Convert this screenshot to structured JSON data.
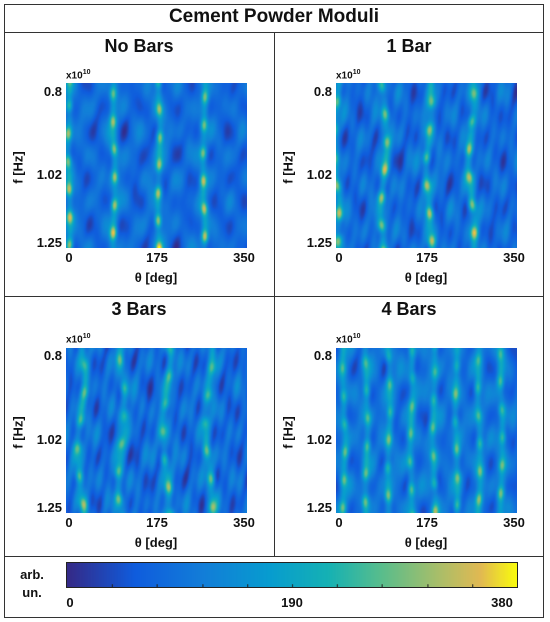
{
  "chart_data": {
    "type": "heatmap",
    "title": "Cement Powder Moduli",
    "xlabel": "θ [deg]",
    "ylabel": "f [Hz]",
    "y_exponent_base": "x10",
    "y_exponent_power": "10",
    "xlim": [
      0,
      360
    ],
    "ylim": [
      0.8,
      1.25
    ],
    "xticks": [
      "0",
      "175",
      "350"
    ],
    "yticks": [
      "0.8",
      "1.02",
      "1.25"
    ],
    "colorbar": {
      "label": "arb. un.",
      "range": [
        0,
        380
      ],
      "ticks": [
        "0",
        "190",
        "380"
      ],
      "colormap": "parula"
    },
    "panels": [
      {
        "title": "No Bars",
        "stripe_angles_deg": [
          5,
          95,
          185,
          275
        ],
        "stripe_intensity": 0.85,
        "disorder": 0.15
      },
      {
        "title": "1 Bar",
        "stripe_angles_deg": [
          0,
          95,
          185,
          270
        ],
        "stripe_intensity": 0.8,
        "disorder": 0.45
      },
      {
        "title": "3 Bars",
        "stripe_angles_deg": [
          30,
          110,
          200,
          285
        ],
        "stripe_intensity": 0.55,
        "disorder": 0.6
      },
      {
        "title": "4 Bars",
        "stripe_angles_deg": [
          15,
          60,
          105,
          150,
          195,
          240,
          285,
          330
        ],
        "stripe_intensity": 0.55,
        "disorder": 0.2
      }
    ]
  }
}
